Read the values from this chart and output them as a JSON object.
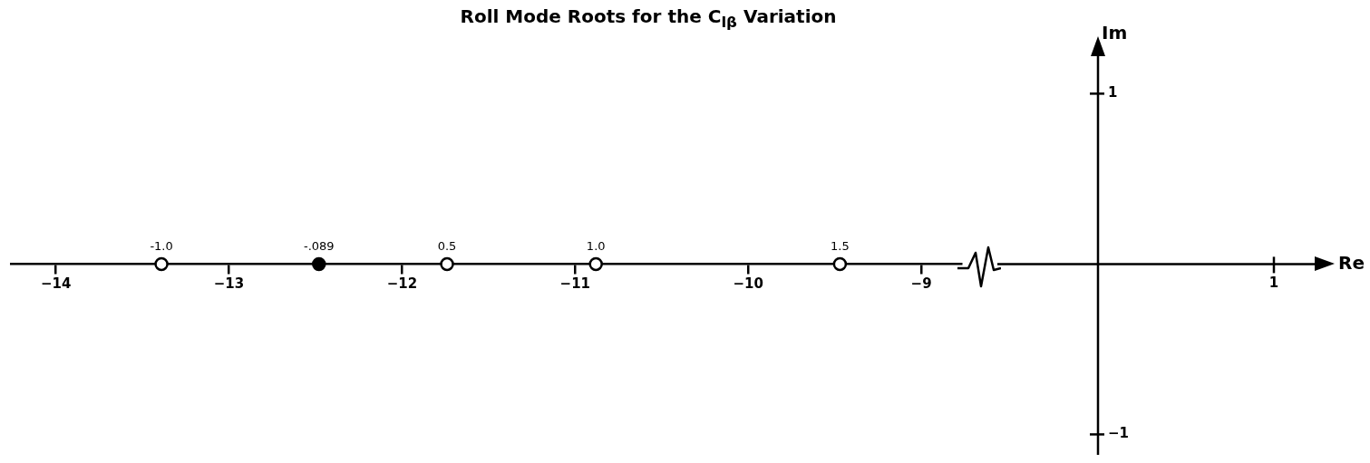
{
  "chart_data": {
    "type": "scatter",
    "title": "Roll Mode Roots for the C$_{lβ}$ Variation",
    "ylabel": "Im",
    "x": [
      -13.39,
      -12.48,
      -11.74,
      -10.88,
      -9.47
    ],
    "values": [
      0,
      0,
      0,
      0,
      0
    ],
    "colors": [
      "#ffffff",
      "#000000",
      "#ffffff",
      "#ffffff",
      "#ffffff"
    ],
    "marker": "circle",
    "xlim": [
      -14.26,
      -8.77
    ],
    "xticks": [
      -14,
      -13,
      -12,
      -11,
      -10,
      -9
    ],
    "ylim": [
      -1.12,
      1.22
    ],
    "yticks": [
      -1,
      1
    ],
    "annotations": [
      {
        "text": "-1.0",
        "x": -13.39,
        "y": 0
      },
      {
        "text": "-.089",
        "x": -12.48,
        "y": 0
      },
      {
        "text": "0.5",
        "x": -11.74,
        "y": 0
      },
      {
        "text": "1.0",
        "x": -10.88,
        "y": 0
      },
      {
        "text": "1.5",
        "x": -9.47,
        "y": 0
      },
      "1",
      "Re"
    ]
  }
}
